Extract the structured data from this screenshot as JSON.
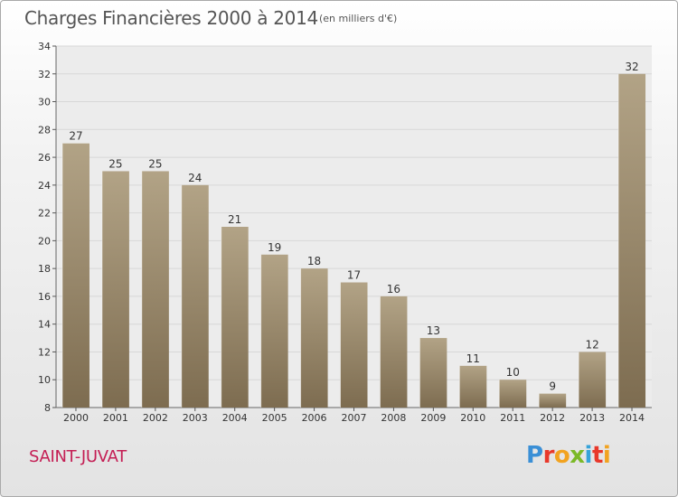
{
  "title": "Charges Financières 2000 à 2014",
  "unit_note": "(en milliers d'€)",
  "commune": "SAINT-JUVAT",
  "logo": {
    "letters": [
      "P",
      "r",
      "o",
      "x",
      "i",
      "t",
      "i"
    ]
  },
  "colors": {
    "bar_light": "#b2a386",
    "bar_dark": "#7d6c50",
    "commune_text": "#c41e54",
    "grid": "#d7d7d7"
  },
  "chart_data": {
    "type": "bar",
    "categories": [
      "2000",
      "2001",
      "2002",
      "2003",
      "2004",
      "2005",
      "2006",
      "2007",
      "2008",
      "2009",
      "2010",
      "2011",
      "2012",
      "2013",
      "2014"
    ],
    "values": [
      27,
      25,
      25,
      24,
      21,
      19,
      18,
      17,
      16,
      13,
      11,
      10,
      9,
      12,
      32
    ],
    "y_ticks": [
      8,
      10,
      12,
      14,
      16,
      18,
      20,
      22,
      24,
      26,
      28,
      30,
      32,
      34
    ],
    "ylim": [
      8,
      34
    ],
    "grid": "horizontal",
    "title": "Charges Financières 2000 à 2014",
    "xlabel": "",
    "ylabel": ""
  }
}
